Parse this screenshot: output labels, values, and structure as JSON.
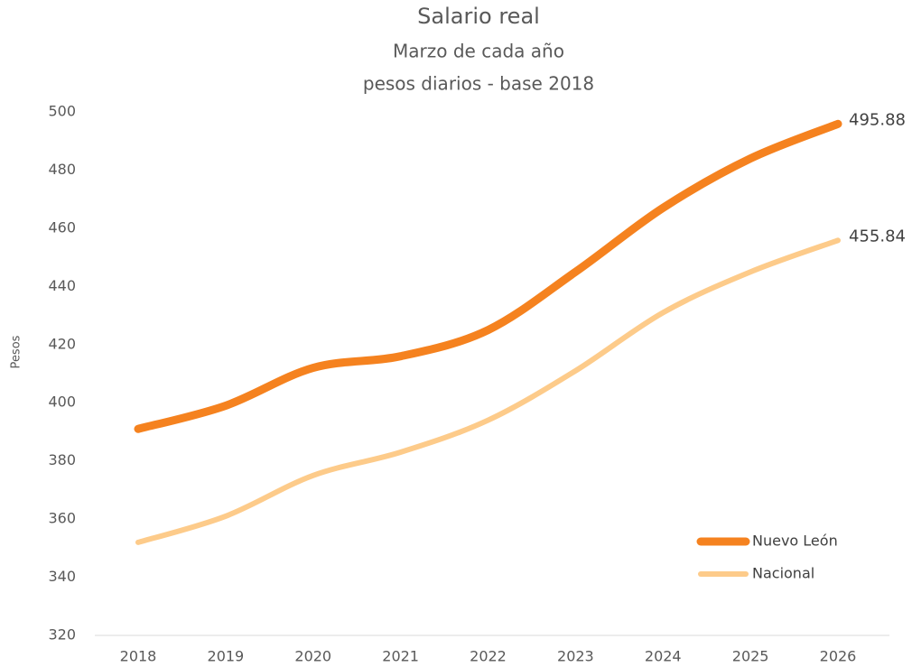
{
  "chart_data": {
    "type": "line",
    "title": "Salario real",
    "subtitle": [
      "Marzo de cada año",
      "pesos diarios - base 2018"
    ],
    "y_label": "Pesos",
    "categories": [
      "2018",
      "2019",
      "2020",
      "2021",
      "2022",
      "2023",
      "2024",
      "2025",
      "2026"
    ],
    "series": [
      {
        "name": "Nuevo León",
        "color": "#f5821f",
        "values": [
          391,
          399,
          412,
          416,
          425,
          445,
          467,
          484,
          495.88
        ]
      },
      {
        "name": "Nacional",
        "color": "#fdcb8a",
        "values": [
          352,
          361,
          375,
          383,
          394,
          411,
          431,
          445,
          455.84
        ]
      }
    ],
    "ylim": [
      320,
      500
    ],
    "yticks": [
      320,
      340,
      360,
      380,
      400,
      420,
      440,
      460,
      480,
      500
    ],
    "data_labels": "last",
    "smooth": true,
    "legend": "lower right"
  }
}
